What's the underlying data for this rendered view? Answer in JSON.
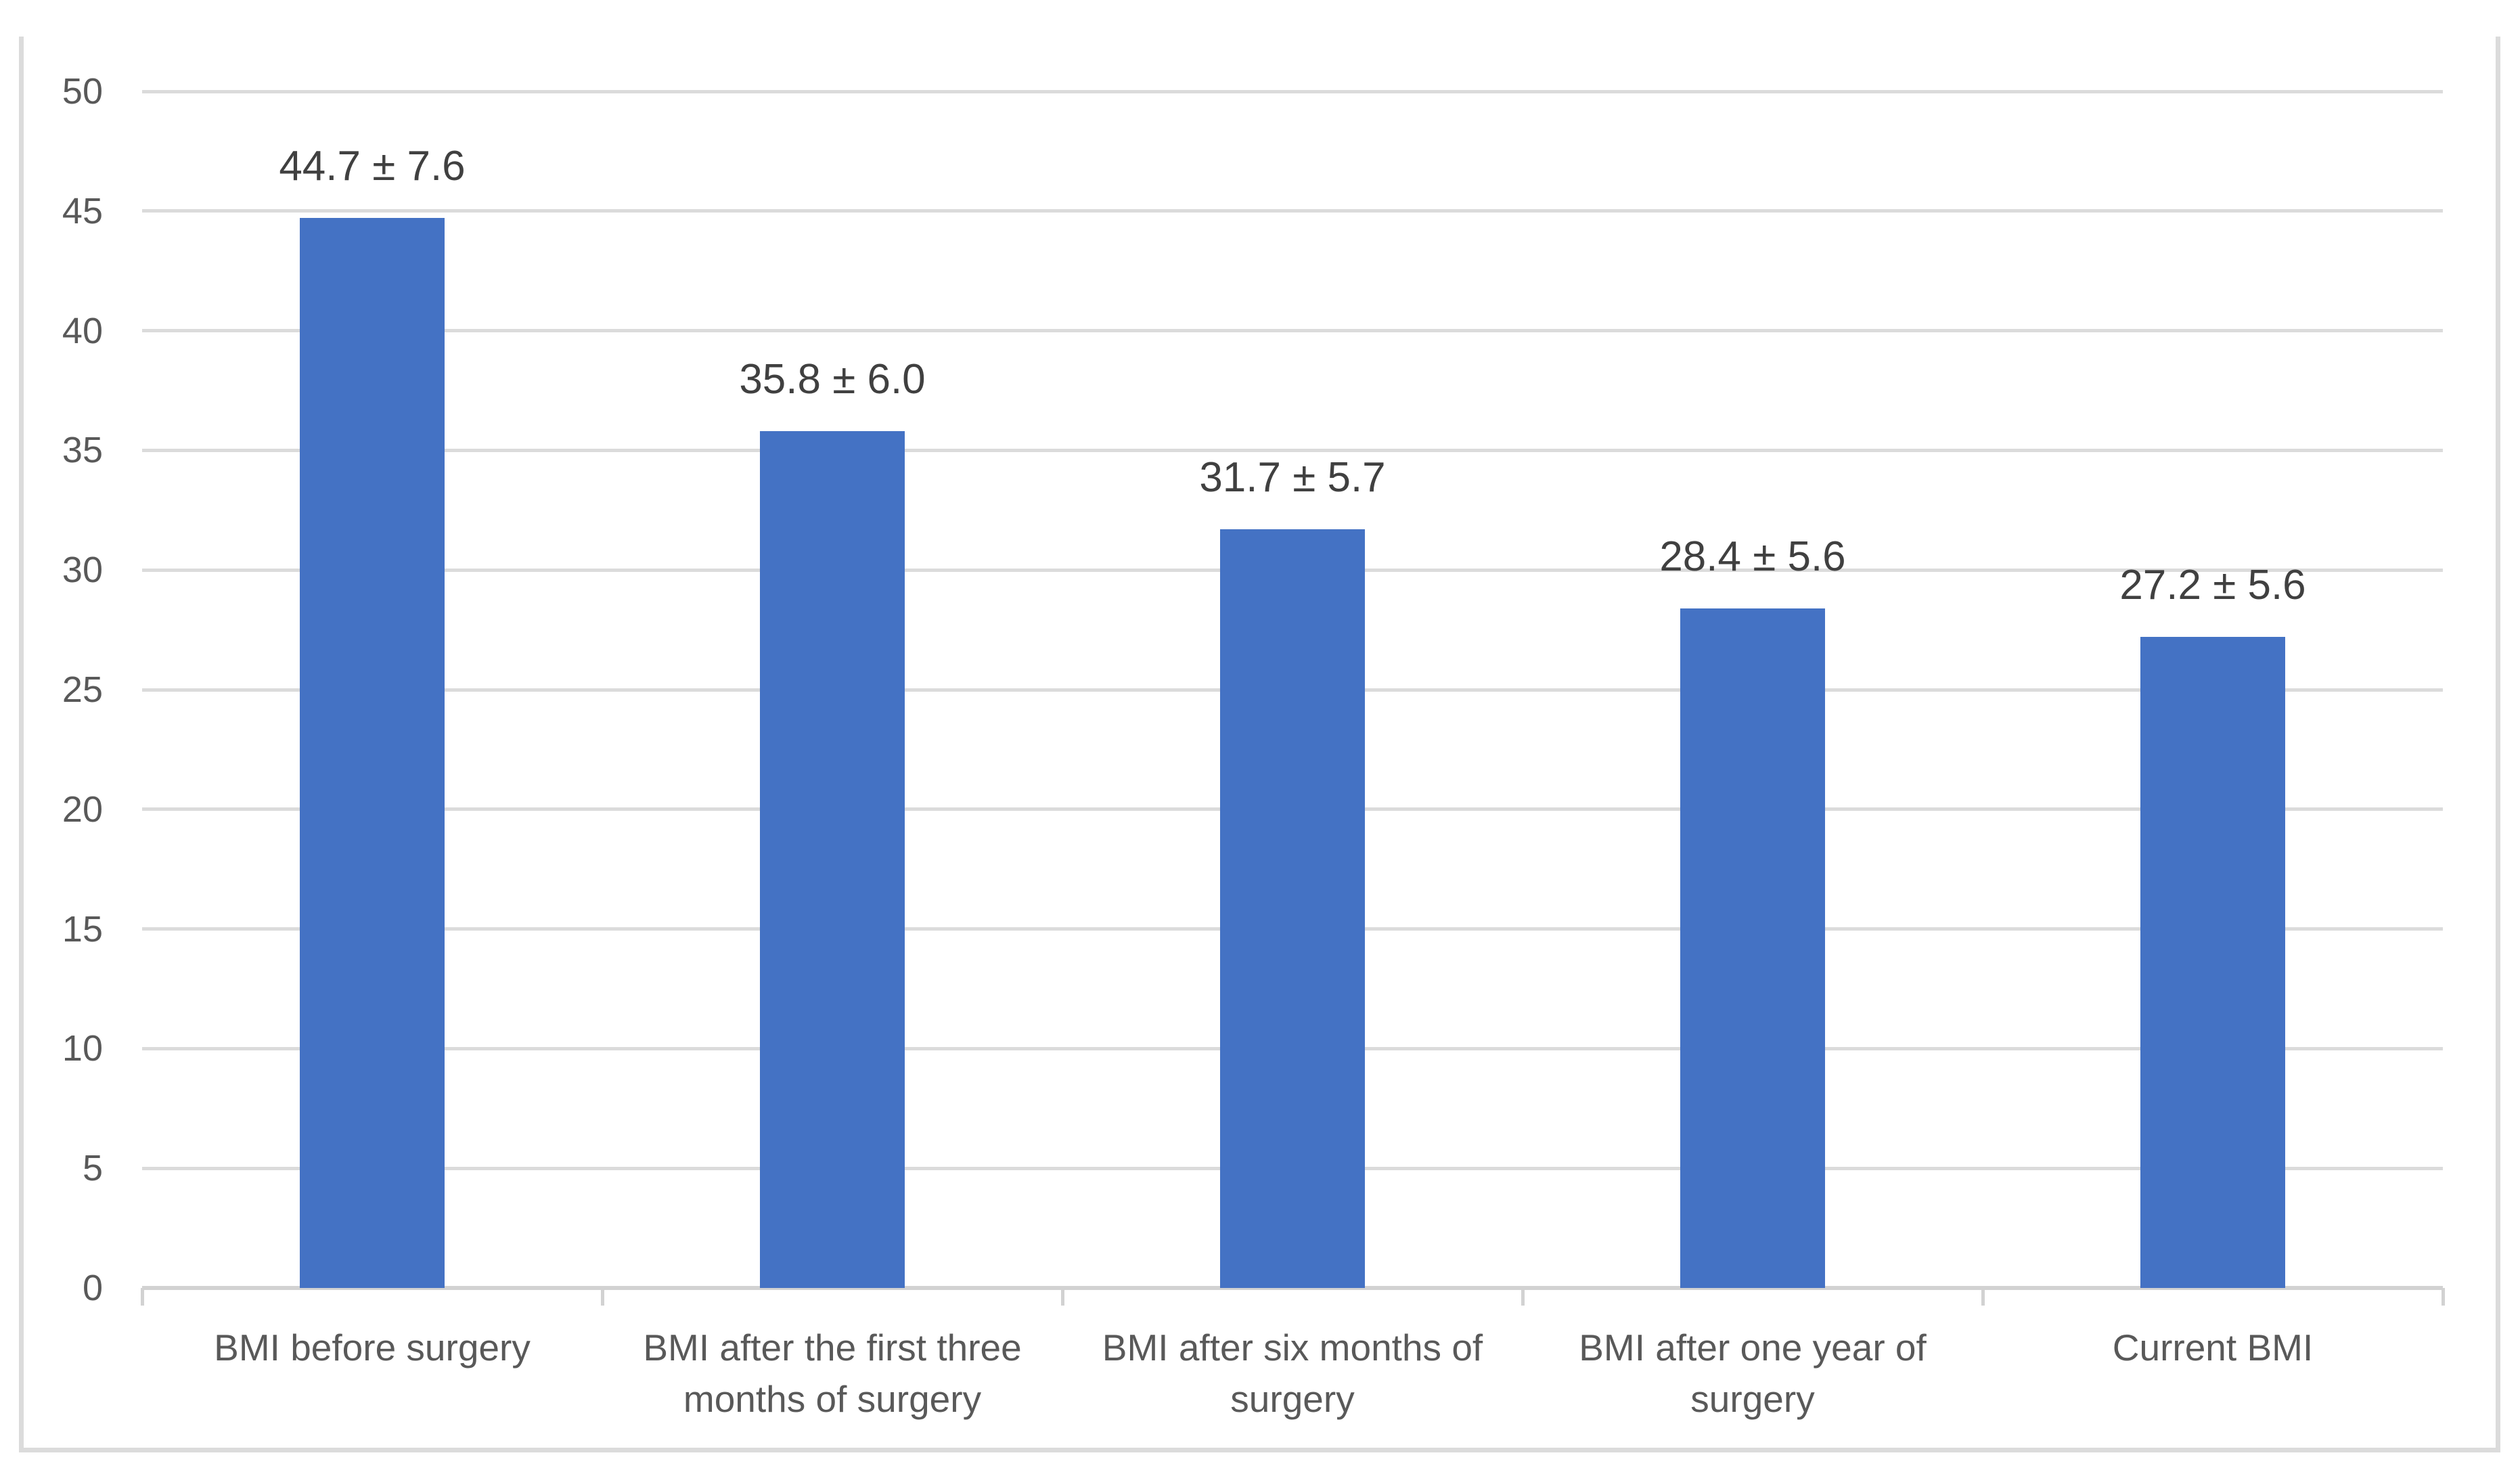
{
  "chart_data": {
    "type": "bar",
    "title": "",
    "xlabel": "",
    "ylabel": "",
    "categories": [
      "BMI before surgery",
      "BMI after the first three months of surgery",
      "BMI after six months of surgery",
      "BMI after one year of surgery",
      "Current BMI"
    ],
    "values": [
      44.7,
      35.8,
      31.7,
      28.4,
      27.2
    ],
    "std_devs": [
      7.6,
      6.0,
      5.7,
      5.6,
      5.6
    ],
    "bar_labels": [
      "44.7 ± 7.6",
      "35.8 ± 6.0",
      "31.7 ± 5.7",
      "28.4 ± 5.6",
      "27.2 ± 5.6"
    ],
    "ylim": [
      0,
      50
    ],
    "ytick_step": 5,
    "ytick_labels": [
      "0",
      "5",
      "10",
      "15",
      "20",
      "25",
      "30",
      "35",
      "40",
      "45",
      "50"
    ],
    "grid": "horizontal",
    "legend": "none",
    "colors": {
      "bar": "#4472C4",
      "gridline": "#DBDBDB",
      "axis_line": "#D2D2D2",
      "tick_label": "#595959",
      "data_label": "#404040",
      "frame_border": "#DBDBDB",
      "background": "#FFFFFF"
    }
  }
}
